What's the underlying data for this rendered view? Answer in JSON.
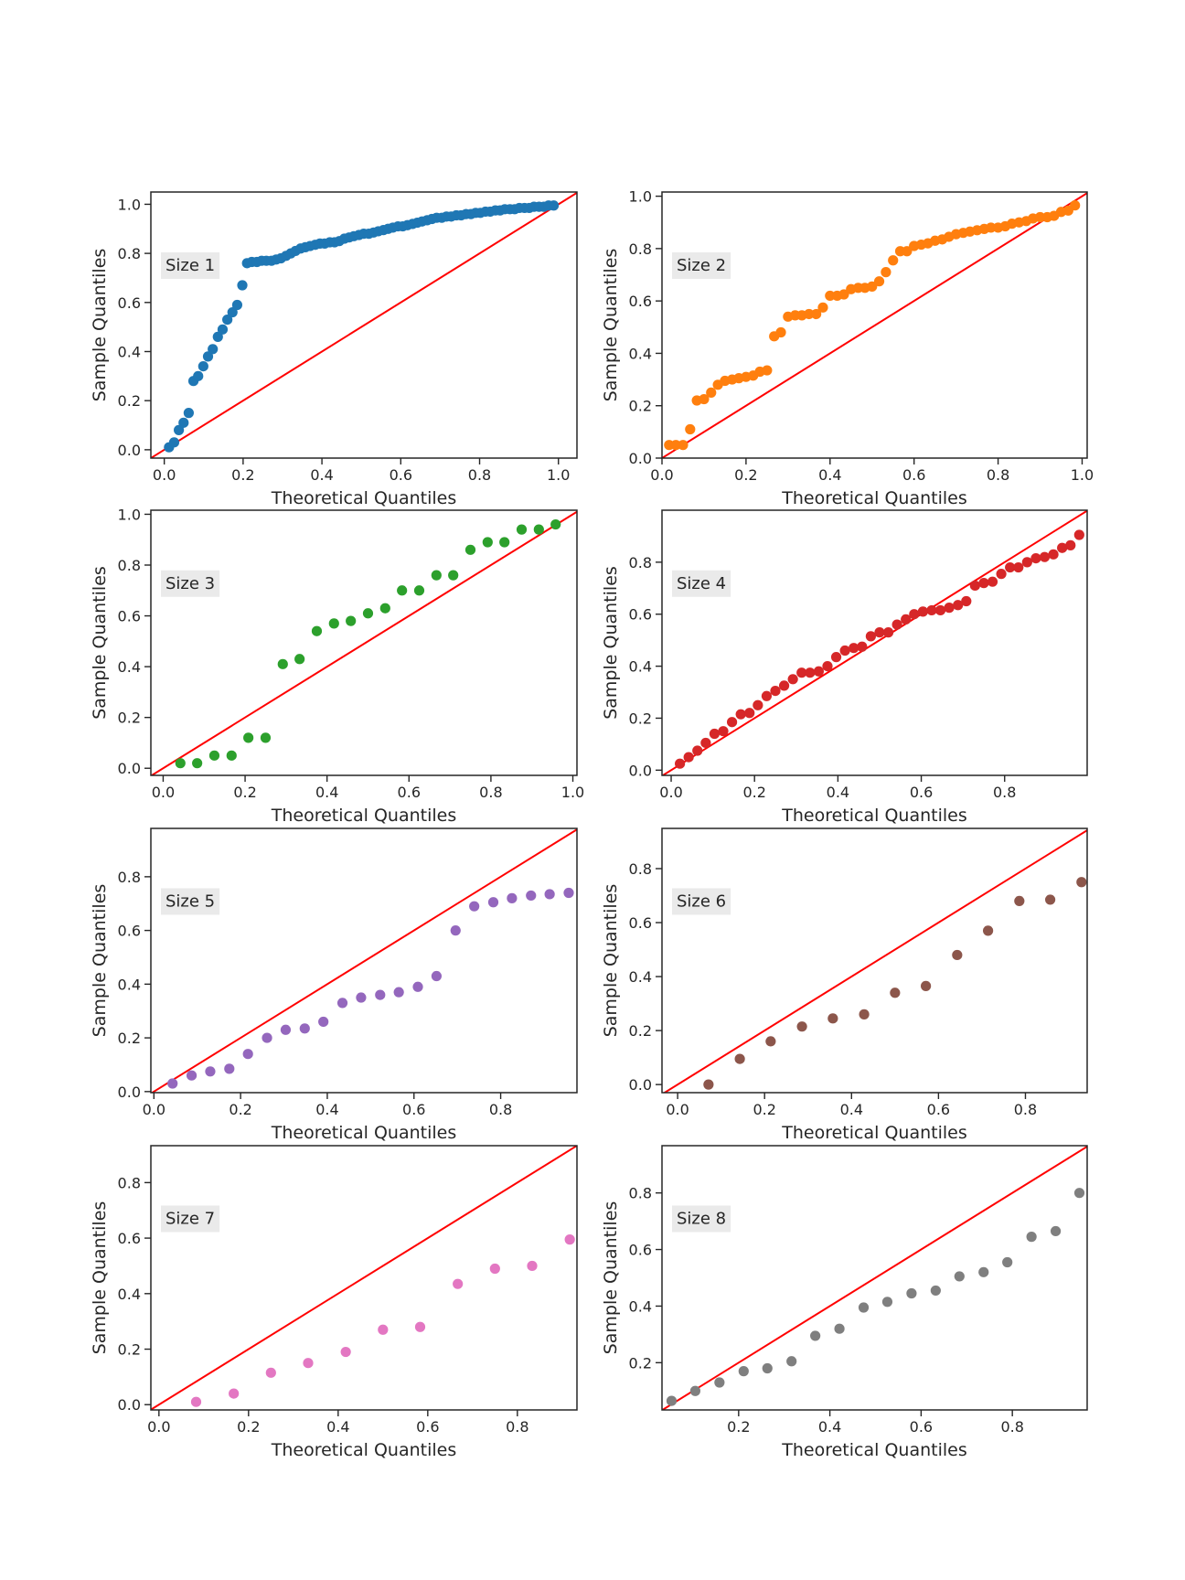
{
  "chart_data": [
    {
      "type": "scatter",
      "annotation": "Size 1",
      "xlabel": "Theoretical Quantiles",
      "ylabel": "Sample Quantiles",
      "color": "#1f77b4",
      "reference_line": "45",
      "line_color": "#ff0000",
      "xlim": [
        -0.034,
        1.047
      ],
      "ylim": [
        -0.034,
        1.05
      ],
      "xticks": [
        {
          "value": 0,
          "label": "0.0"
        },
        0.2,
        0.4,
        0.6,
        0.8,
        {
          "value": 1,
          "label": "1.0"
        }
      ],
      "yticks": [
        {
          "value": 0,
          "label": "0.0"
        },
        0.2,
        0.4,
        0.6,
        0.8,
        {
          "value": 1,
          "label": "1.0"
        }
      ],
      "x": [
        0.012,
        0.025,
        0.037,
        0.049,
        0.062,
        0.074,
        0.086,
        0.099,
        0.111,
        0.123,
        0.136,
        0.148,
        0.16,
        0.173,
        0.185,
        0.198,
        0.21,
        0.222,
        0.235,
        0.247,
        0.259,
        0.272,
        0.284,
        0.296,
        0.309,
        0.321,
        0.333,
        0.346,
        0.358,
        0.37,
        0.383,
        0.395,
        0.407,
        0.42,
        0.432,
        0.444,
        0.457,
        0.469,
        0.481,
        0.494,
        0.506,
        0.519,
        0.531,
        0.543,
        0.556,
        0.568,
        0.58,
        0.593,
        0.605,
        0.617,
        0.63,
        0.642,
        0.654,
        0.667,
        0.679,
        0.691,
        0.704,
        0.716,
        0.728,
        0.741,
        0.753,
        0.765,
        0.778,
        0.79,
        0.802,
        0.815,
        0.827,
        0.84,
        0.852,
        0.864,
        0.877,
        0.889,
        0.901,
        0.914,
        0.926,
        0.938,
        0.951,
        0.963,
        0.975,
        0.988
      ],
      "values": [
        0.01,
        0.03,
        0.08,
        0.11,
        0.15,
        0.28,
        0.3,
        0.34,
        0.38,
        0.41,
        0.46,
        0.49,
        0.53,
        0.56,
        0.59,
        0.67,
        0.76,
        0.765,
        0.765,
        0.77,
        0.77,
        0.77,
        0.775,
        0.78,
        0.79,
        0.8,
        0.81,
        0.82,
        0.825,
        0.83,
        0.835,
        0.84,
        0.84,
        0.845,
        0.845,
        0.85,
        0.86,
        0.865,
        0.87,
        0.875,
        0.88,
        0.88,
        0.885,
        0.89,
        0.895,
        0.9,
        0.905,
        0.91,
        0.91,
        0.915,
        0.92,
        0.925,
        0.93,
        0.935,
        0.94,
        0.945,
        0.945,
        0.95,
        0.95,
        0.955,
        0.955,
        0.96,
        0.96,
        0.965,
        0.965,
        0.97,
        0.97,
        0.975,
        0.975,
        0.98,
        0.98,
        0.98,
        0.985,
        0.985,
        0.985,
        0.99,
        0.99,
        0.99,
        0.995,
        0.995
      ]
    },
    {
      "type": "scatter",
      "annotation": "Size 2",
      "xlabel": "Theoretical Quantiles",
      "ylabel": "Sample Quantiles",
      "color": "#ff7f0e",
      "reference_line": "45",
      "line_color": "#ff0000",
      "xlim": [
        0,
        1.012
      ],
      "ylim": [
        0,
        1.016
      ],
      "xticks": [
        {
          "value": 0,
          "label": "0.0"
        },
        0.2,
        0.4,
        0.6,
        0.8,
        {
          "value": 1,
          "label": "1.0"
        }
      ],
      "yticks": [
        {
          "value": 0,
          "label": "0.0"
        },
        0.2,
        0.4,
        0.6,
        0.8,
        {
          "value": 1,
          "label": "1.0"
        }
      ],
      "x": [
        0.017,
        0.033,
        0.05,
        0.067,
        0.083,
        0.1,
        0.117,
        0.133,
        0.15,
        0.167,
        0.183,
        0.2,
        0.217,
        0.233,
        0.25,
        0.267,
        0.283,
        0.3,
        0.317,
        0.333,
        0.35,
        0.367,
        0.383,
        0.4,
        0.417,
        0.433,
        0.45,
        0.467,
        0.483,
        0.5,
        0.517,
        0.533,
        0.55,
        0.567,
        0.583,
        0.6,
        0.617,
        0.633,
        0.65,
        0.667,
        0.683,
        0.7,
        0.717,
        0.733,
        0.75,
        0.767,
        0.783,
        0.8,
        0.817,
        0.833,
        0.85,
        0.867,
        0.883,
        0.9,
        0.917,
        0.933,
        0.95,
        0.967,
        0.983
      ],
      "values": [
        0.05,
        0.05,
        0.05,
        0.11,
        0.22,
        0.225,
        0.25,
        0.28,
        0.295,
        0.3,
        0.305,
        0.31,
        0.315,
        0.33,
        0.335,
        0.465,
        0.48,
        0.54,
        0.545,
        0.545,
        0.55,
        0.55,
        0.575,
        0.62,
        0.62,
        0.625,
        0.645,
        0.65,
        0.65,
        0.655,
        0.675,
        0.71,
        0.755,
        0.79,
        0.79,
        0.81,
        0.815,
        0.82,
        0.83,
        0.835,
        0.845,
        0.855,
        0.86,
        0.865,
        0.87,
        0.875,
        0.88,
        0.88,
        0.885,
        0.895,
        0.9,
        0.905,
        0.915,
        0.92,
        0.92,
        0.925,
        0.94,
        0.945,
        0.965
      ]
    },
    {
      "type": "scatter",
      "annotation": "Size 3",
      "xlabel": "Theoretical Quantiles",
      "ylabel": "Sample Quantiles",
      "color": "#2ca02c",
      "reference_line": "45",
      "line_color": "#ff0000",
      "xlim": [
        -0.03,
        1.01
      ],
      "ylim": [
        -0.028,
        1.016
      ],
      "xticks": [
        {
          "value": 0,
          "label": "0.0"
        },
        0.2,
        0.4,
        0.6,
        0.8,
        {
          "value": 1,
          "label": "1.0"
        }
      ],
      "yticks": [
        {
          "value": 0,
          "label": "0.0"
        },
        0.2,
        0.4,
        0.6,
        0.8,
        {
          "value": 1,
          "label": "1.0"
        }
      ],
      "x": [
        0.042,
        0.083,
        0.125,
        0.167,
        0.208,
        0.25,
        0.292,
        0.333,
        0.375,
        0.417,
        0.458,
        0.5,
        0.542,
        0.583,
        0.625,
        0.667,
        0.708,
        0.75,
        0.792,
        0.833,
        0.875,
        0.917,
        0.958
      ],
      "values": [
        0.02,
        0.02,
        0.05,
        0.05,
        0.12,
        0.12,
        0.41,
        0.43,
        0.54,
        0.57,
        0.58,
        0.61,
        0.63,
        0.7,
        0.7,
        0.76,
        0.76,
        0.86,
        0.89,
        0.89,
        0.94,
        0.94,
        0.96
      ]
    },
    {
      "type": "scatter",
      "annotation": "Size 4",
      "xlabel": "Theoretical Quantiles",
      "ylabel": "Sample Quantiles",
      "color": "#d62728",
      "reference_line": "45",
      "line_color": "#ff0000",
      "xlim": [
        -0.022,
        0.998
      ],
      "ylim": [
        -0.02,
        1.0
      ],
      "xticks": [
        {
          "value": 0,
          "label": "0.0"
        },
        0.2,
        0.4,
        0.6,
        0.8
      ],
      "yticks": [
        {
          "value": 0,
          "label": "0.0"
        },
        0.2,
        0.4,
        0.6,
        0.8
      ],
      "x": [
        0.021,
        0.042,
        0.063,
        0.083,
        0.104,
        0.125,
        0.146,
        0.167,
        0.188,
        0.208,
        0.229,
        0.25,
        0.271,
        0.292,
        0.313,
        0.333,
        0.354,
        0.375,
        0.396,
        0.417,
        0.438,
        0.458,
        0.479,
        0.5,
        0.521,
        0.542,
        0.563,
        0.583,
        0.604,
        0.625,
        0.646,
        0.667,
        0.688,
        0.708,
        0.729,
        0.75,
        0.771,
        0.792,
        0.813,
        0.833,
        0.854,
        0.875,
        0.896,
        0.917,
        0.938,
        0.958,
        0.979
      ],
      "values": [
        0.025,
        0.05,
        0.075,
        0.105,
        0.14,
        0.15,
        0.185,
        0.215,
        0.22,
        0.25,
        0.285,
        0.305,
        0.325,
        0.35,
        0.375,
        0.375,
        0.38,
        0.4,
        0.435,
        0.46,
        0.47,
        0.475,
        0.515,
        0.53,
        0.53,
        0.56,
        0.58,
        0.6,
        0.61,
        0.615,
        0.615,
        0.625,
        0.635,
        0.65,
        0.71,
        0.72,
        0.725,
        0.755,
        0.78,
        0.78,
        0.8,
        0.815,
        0.82,
        0.83,
        0.855,
        0.865,
        0.905
      ]
    },
    {
      "type": "scatter",
      "annotation": "Size 5",
      "xlabel": "Theoretical Quantiles",
      "ylabel": "Sample Quantiles",
      "color": "#9467bd",
      "reference_line": "45",
      "line_color": "#ff0000",
      "xlim": [
        -0.007,
        0.976
      ],
      "ylim": [
        -0.004,
        0.98
      ],
      "xticks": [
        {
          "value": 0,
          "label": "0.0"
        },
        0.2,
        0.4,
        0.6,
        0.8
      ],
      "yticks": [
        {
          "value": 0,
          "label": "0.0"
        },
        0.2,
        0.4,
        0.6,
        0.8
      ],
      "x": [
        0.043,
        0.087,
        0.13,
        0.174,
        0.217,
        0.261,
        0.304,
        0.348,
        0.391,
        0.435,
        0.478,
        0.522,
        0.565,
        0.609,
        0.652,
        0.696,
        0.739,
        0.783,
        0.826,
        0.87,
        0.913,
        0.957
      ],
      "values": [
        0.03,
        0.06,
        0.075,
        0.085,
        0.14,
        0.2,
        0.23,
        0.235,
        0.26,
        0.33,
        0.35,
        0.36,
        0.37,
        0.39,
        0.43,
        0.6,
        0.69,
        0.705,
        0.72,
        0.73,
        0.735,
        0.74
      ]
    },
    {
      "type": "scatter",
      "annotation": "Size 6",
      "xlabel": "Theoretical Quantiles",
      "ylabel": "Sample Quantiles",
      "color": "#8c564b",
      "reference_line": "45",
      "line_color": "#ff0000",
      "xlim": [
        -0.036,
        0.942
      ],
      "ylim": [
        -0.03,
        0.949
      ],
      "xticks": [
        {
          "value": 0,
          "label": "0.0"
        },
        0.2,
        0.4,
        0.6,
        0.8
      ],
      "yticks": [
        {
          "value": 0,
          "label": "0.0"
        },
        0.2,
        0.4,
        0.6,
        0.8
      ],
      "x": [
        0.071,
        0.143,
        0.214,
        0.286,
        0.357,
        0.429,
        0.5,
        0.571,
        0.643,
        0.714,
        0.786,
        0.857,
        0.929
      ],
      "values": [
        0.0,
        0.095,
        0.16,
        0.215,
        0.245,
        0.26,
        0.34,
        0.365,
        0.48,
        0.57,
        0.68,
        0.685,
        0.75
      ]
    },
    {
      "type": "scatter",
      "annotation": "Size 7",
      "xlabel": "Theoretical Quantiles",
      "ylabel": "Sample Quantiles",
      "color": "#e377c2",
      "reference_line": "45",
      "line_color": "#ff0000",
      "xlim": [
        -0.018,
        0.933
      ],
      "ylim": [
        -0.019,
        0.933
      ],
      "xticks": [
        {
          "value": 0,
          "label": "0.0"
        },
        0.2,
        0.4,
        0.6,
        0.8
      ],
      "yticks": [
        {
          "value": 0,
          "label": "0.0"
        },
        0.2,
        0.4,
        0.6,
        0.8
      ],
      "x": [
        0.083,
        0.167,
        0.25,
        0.333,
        0.417,
        0.5,
        0.583,
        0.667,
        0.75,
        0.833,
        0.917
      ],
      "values": [
        0.01,
        0.04,
        0.115,
        0.15,
        0.19,
        0.27,
        0.28,
        0.435,
        0.49,
        0.5,
        0.595
      ]
    },
    {
      "type": "scatter",
      "annotation": "Size 8",
      "xlabel": "Theoretical Quantiles",
      "ylabel": "Sample Quantiles",
      "color": "#7f7f7f",
      "reference_line": "45",
      "line_color": "#ff0000",
      "xlim": [
        0.032,
        0.964
      ],
      "ylim": [
        0.033,
        0.967
      ],
      "xticks": [
        0.2,
        0.4,
        0.6,
        0.8
      ],
      "yticks": [
        0.2,
        0.4,
        0.6,
        0.8
      ],
      "x": [
        0.053,
        0.105,
        0.158,
        0.211,
        0.263,
        0.316,
        0.368,
        0.421,
        0.474,
        0.526,
        0.579,
        0.632,
        0.684,
        0.737,
        0.789,
        0.842,
        0.895,
        0.947
      ],
      "values": [
        0.065,
        0.1,
        0.13,
        0.17,
        0.18,
        0.205,
        0.295,
        0.32,
        0.395,
        0.415,
        0.445,
        0.455,
        0.505,
        0.52,
        0.555,
        0.645,
        0.665,
        0.8
      ]
    }
  ]
}
